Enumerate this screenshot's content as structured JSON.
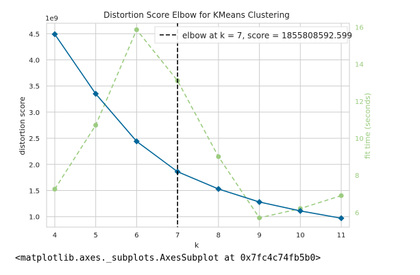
{
  "chart_data": {
    "type": "line",
    "title": "Distortion Score Elbow for KMeans Clustering",
    "xlabel": "k",
    "ylabel": "distortion score",
    "y2label": "fit time (seconds)",
    "y_offset_text": "1e9",
    "x": [
      4,
      5,
      6,
      7,
      8,
      9,
      10,
      11
    ],
    "xlim": [
      3.8,
      11.2
    ],
    "ylim": [
      0.8,
      4.7
    ],
    "y2lim": [
      5.2,
      16.2
    ],
    "x_ticks": [
      "4",
      "5",
      "6",
      "7",
      "8",
      "9",
      "10",
      "11"
    ],
    "y_ticks": [
      "1.0",
      "1.5",
      "2.0",
      "2.5",
      "3.0",
      "3.5",
      "4.0",
      "4.5"
    ],
    "y2_ticks": [
      "6",
      "8",
      "10",
      "12",
      "14",
      "16"
    ],
    "grid": true,
    "series": [
      {
        "axis": "left",
        "values": [
          4.49,
          3.35,
          2.44,
          1.86,
          1.53,
          1.28,
          1.11,
          0.97
        ],
        "color": "#006699",
        "marker": "diamond",
        "style": "solid"
      },
      {
        "axis": "right",
        "values": [
          7.25,
          10.7,
          15.85,
          13.1,
          9.0,
          5.7,
          6.2,
          6.9
        ],
        "color": "#9ccc80",
        "marker": "circle",
        "style": "dashed"
      }
    ],
    "elbow": {
      "k": 7,
      "legend": "elbow at k = 7, score = 1855808592.599",
      "color": "#000000",
      "legend_position": "top-right"
    }
  },
  "output": {
    "repr": "<matplotlib.axes._subplots.AxesSubplot at 0x7fc4c74fb5b0>"
  }
}
